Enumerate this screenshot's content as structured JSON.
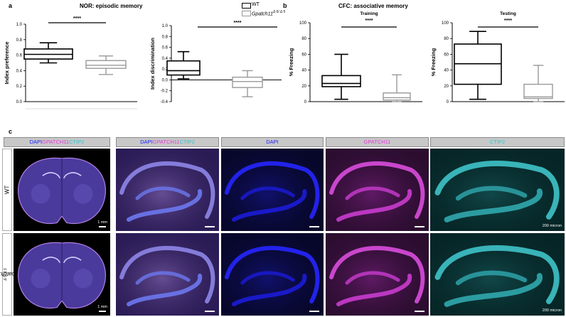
{
  "panel_a": {
    "letter": "a",
    "title": "NOR: episodic memory",
    "legend": {
      "wt": "WT",
      "mut_base": "Gpatch11",
      "mut_sup": "Δ 5/ Δ 5"
    }
  },
  "panel_b": {
    "letter": "b",
    "title": "CFC: associative memory"
  },
  "panel_c": {
    "letter": "c",
    "headers": [
      {
        "parts": [
          {
            "t": "DAPI",
            "c": "dapi"
          },
          {
            "t": "GPATCH11",
            "c": "gp"
          },
          {
            "t": "CTIP2",
            "c": "ct"
          }
        ]
      },
      {
        "parts": [
          {
            "t": "DAPI",
            "c": "dapi"
          },
          {
            "t": "GPATCH11",
            "c": "gp"
          },
          {
            "t": "CTIP2",
            "c": "ct"
          }
        ]
      },
      {
        "parts": [
          {
            "t": "DAPI",
            "c": "dapi"
          }
        ]
      },
      {
        "parts": [
          {
            "t": "GPATCH11",
            "c": "gp"
          }
        ]
      },
      {
        "parts": [
          {
            "t": "CTIP2",
            "c": "ct"
          }
        ]
      }
    ],
    "row_labels": {
      "wt": "WT",
      "mut_base": "Gpatch11",
      "mut_sup": "Δ 5/ Δ 5"
    },
    "scale_1mm": "1 mm",
    "scale_200": "200 micron"
  },
  "colors": {
    "wt": "#000000",
    "mut": "#999999",
    "dapi": "#1a1aff",
    "gpatch11": "#e23bd8",
    "ctip2": "#25c8d0"
  },
  "chart_data": [
    {
      "type": "box",
      "ylabel": "Index preference",
      "ylim": [
        0.0,
        1.0
      ],
      "yticks": [
        "0.0",
        "0.2",
        "0.4",
        "0.6",
        "0.8",
        "1.0"
      ],
      "significance": "****",
      "series": [
        {
          "name": "WT",
          "min": 0.5,
          "q1": 0.55,
          "median": 0.61,
          "q3": 0.68,
          "max": 0.76
        },
        {
          "name": "Gpatch11 Δ 5/ Δ 5",
          "min": 0.35,
          "q1": 0.43,
          "median": 0.47,
          "q3": 0.53,
          "max": 0.59
        }
      ]
    },
    {
      "type": "box",
      "ylabel": "Index discrimination",
      "ylim": [
        -0.4,
        1.0
      ],
      "yticks": [
        "-0.4",
        "-0.2",
        "0.0",
        "0.2",
        "0.4",
        "0.6",
        "0.8",
        "1.0"
      ],
      "significance": "****",
      "series": [
        {
          "name": "WT",
          "min": 0.02,
          "q1": 0.09,
          "median": 0.17,
          "q3": 0.35,
          "max": 0.52
        },
        {
          "name": "Gpatch11 Δ 5/ Δ 5",
          "min": -0.31,
          "q1": -0.14,
          "median": -0.03,
          "q3": 0.05,
          "max": 0.17
        }
      ]
    },
    {
      "type": "box",
      "title": "Training",
      "ylabel": "% Freezing",
      "ylim": [
        0,
        100
      ],
      "yticks": [
        "0",
        "20",
        "40",
        "60",
        "80",
        "100"
      ],
      "significance": "****",
      "series": [
        {
          "name": "WT",
          "min": 3,
          "q1": 19,
          "median": 23,
          "q3": 33,
          "max": 60
        },
        {
          "name": "Gpatch11 Δ 5/ Δ 5",
          "min": 0,
          "q1": 2,
          "median": 5,
          "q3": 11,
          "max": 34
        }
      ]
    },
    {
      "type": "box",
      "title": "Testing",
      "ylabel": "% Freezing",
      "ylim": [
        0,
        100
      ],
      "yticks": [
        "0",
        "20",
        "40",
        "60",
        "80",
        "100"
      ],
      "significance": "****",
      "series": [
        {
          "name": "WT",
          "min": 3,
          "q1": 22,
          "median": 48,
          "q3": 73,
          "max": 89
        },
        {
          "name": "Gpatch11 Δ 5/ Δ 5",
          "min": 0,
          "q1": 4,
          "median": 6,
          "q3": 22,
          "max": 46
        }
      ]
    }
  ]
}
